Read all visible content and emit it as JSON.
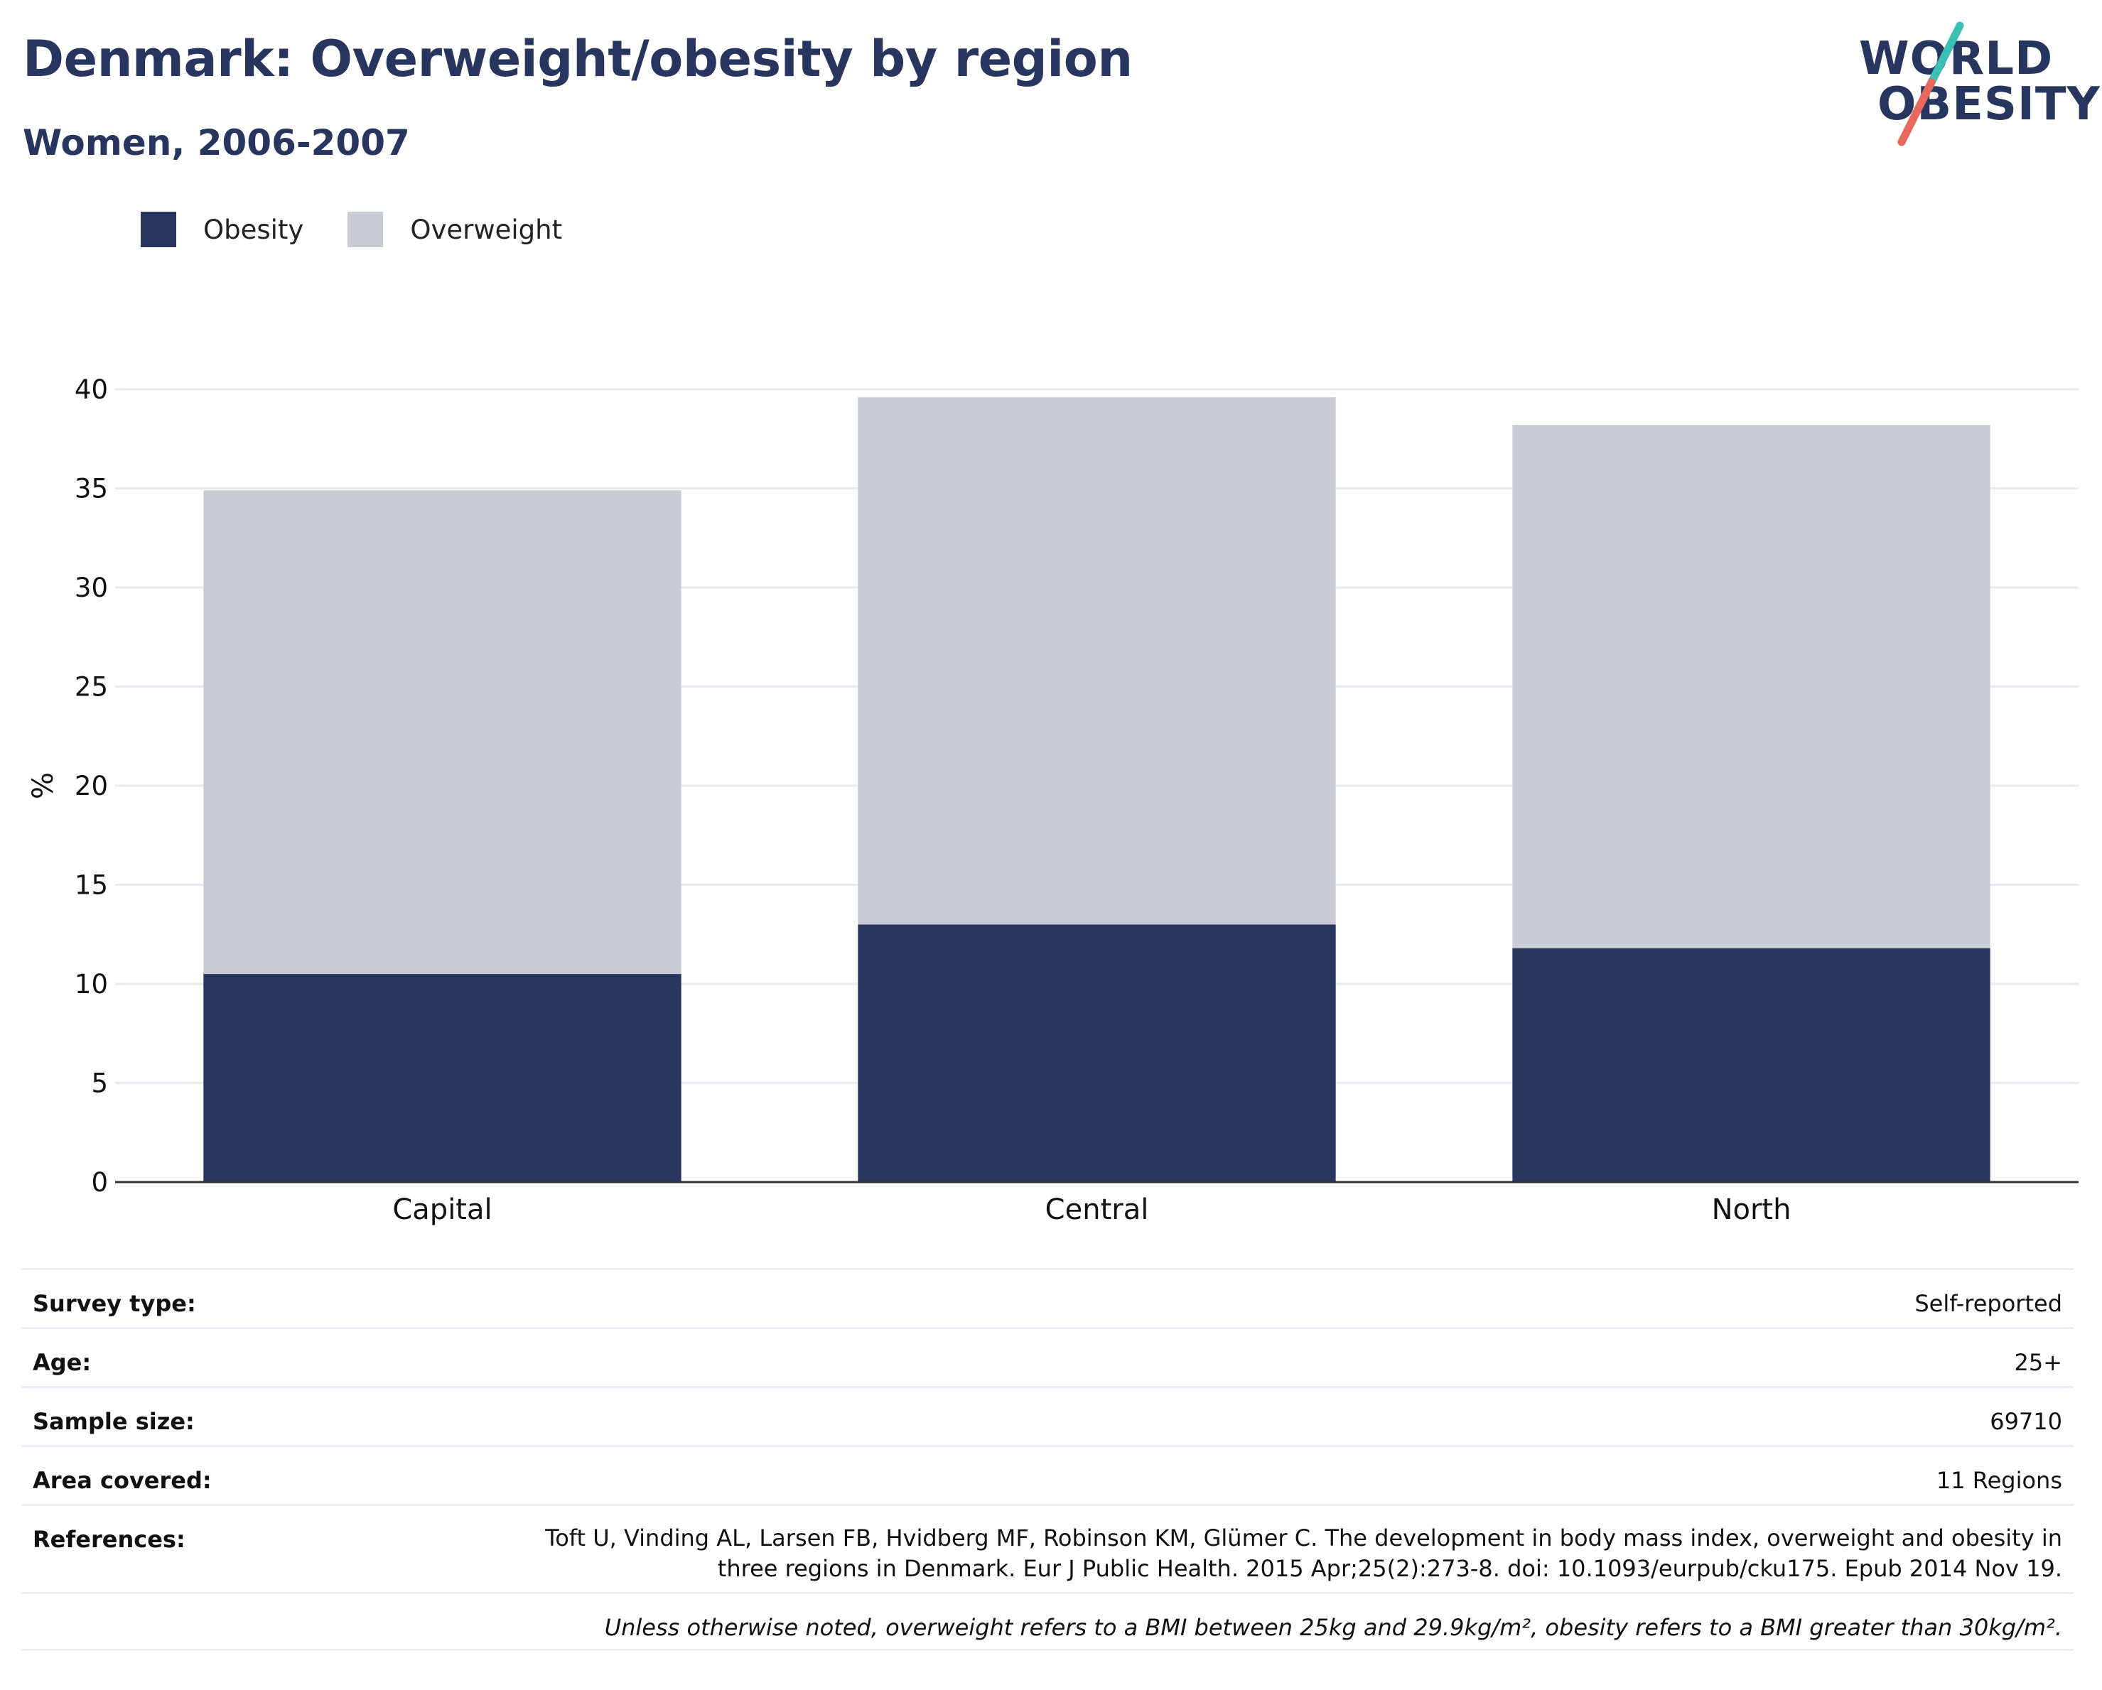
{
  "header": {
    "title": "Denmark: Overweight/obesity by region",
    "subtitle": "Women, 2006-2007"
  },
  "logo": {
    "line1": "WORLD",
    "line2": "OBESITY",
    "icon": "slash-logo-icon",
    "colors": {
      "text": "#28365f",
      "slash_top": "#3bbfb3",
      "slash_bottom": "#e9685d"
    }
  },
  "legend": [
    {
      "label": "Obesity",
      "color": "#29375f"
    },
    {
      "label": "Overweight",
      "color": "#c9cbd7"
    }
  ],
  "chart_data": {
    "type": "bar",
    "stacked": true,
    "categories": [
      "Capital",
      "Central",
      "North"
    ],
    "series": [
      {
        "name": "Obesity",
        "values": [
          10.5,
          13.0,
          11.8
        ],
        "color": "#29375f"
      },
      {
        "name": "Overweight",
        "values": [
          24.4,
          26.6,
          26.4
        ],
        "color": "#c9cbd7"
      }
    ],
    "ylabel": "%",
    "ylim": [
      0,
      40
    ],
    "yticks": [
      0,
      5,
      10,
      15,
      20,
      25,
      30,
      35,
      40
    ],
    "grid": true,
    "legend_position": "top-left"
  },
  "info": {
    "survey_type": {
      "label": "Survey type:",
      "value": "Self-reported"
    },
    "age": {
      "label": "Age:",
      "value": "25+"
    },
    "sample_size": {
      "label": "Sample size:",
      "value": "69710"
    },
    "area_covered": {
      "label": "Area covered:",
      "value": "11 Regions"
    },
    "references": {
      "label": "References:",
      "value": "Toft U, Vinding AL, Larsen FB, Hvidberg MF, Robinson KM, Glümer C. The development in body mass index, overweight and obesity in three regions in Denmark. Eur J Public Health. 2015 Apr;25(2):273-8. doi: 10.1093/eurpub/cku175. Epub 2014 Nov 19."
    },
    "note": "Unless otherwise noted, overweight refers to a BMI between 25kg and 29.9kg/m², obesity refers to a BMI greater than 30kg/m²."
  }
}
